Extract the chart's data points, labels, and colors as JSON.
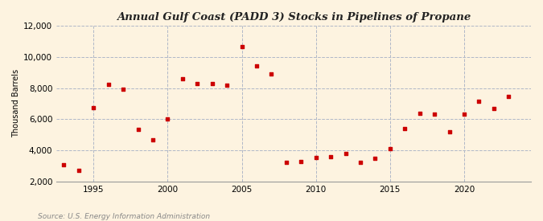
{
  "title": "Annual Gulf Coast (PADD 3) Stocks in Pipelines of Propane",
  "ylabel": "Thousand Barrels",
  "source": "Source: U.S. Energy Information Administration",
  "background_color": "#fdf3e0",
  "marker_color": "#cc0000",
  "years": [
    1993,
    1994,
    1995,
    1996,
    1997,
    1998,
    1999,
    2000,
    2001,
    2002,
    2003,
    2004,
    2005,
    2006,
    2007,
    2008,
    2009,
    2010,
    2011,
    2012,
    2013,
    2014,
    2015,
    2016,
    2017,
    2018,
    2019,
    2020,
    2021,
    2022,
    2023
  ],
  "values": [
    3100,
    2700,
    6750,
    8250,
    7900,
    5350,
    4650,
    6000,
    8600,
    8300,
    8300,
    8200,
    10650,
    9400,
    8900,
    3250,
    3300,
    3550,
    3600,
    3800,
    3250,
    3500,
    4100,
    5400,
    6400,
    6350,
    5200,
    6350,
    7150,
    6700,
    7450
  ],
  "ylim": [
    2000,
    12000
  ],
  "yticks": [
    2000,
    4000,
    6000,
    8000,
    10000,
    12000
  ],
  "xlim": [
    1992.5,
    2024.5
  ],
  "xticks": [
    1995,
    2000,
    2005,
    2010,
    2015,
    2020
  ]
}
